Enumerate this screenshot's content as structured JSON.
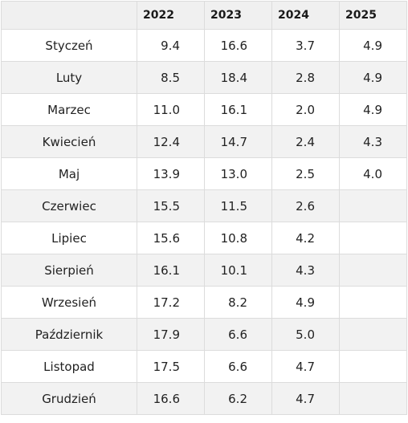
{
  "table": {
    "headers": [
      "",
      "2022",
      "2023",
      "2024",
      "2025"
    ],
    "rows": [
      {
        "month": "Styczeń",
        "values": [
          "9.4",
          "16.6",
          "3.7",
          "4.9"
        ]
      },
      {
        "month": "Luty",
        "values": [
          "8.5",
          "18.4",
          "2.8",
          "4.9"
        ]
      },
      {
        "month": "Marzec",
        "values": [
          "11.0",
          "16.1",
          "2.0",
          "4.9"
        ]
      },
      {
        "month": "Kwiecień",
        "values": [
          "12.4",
          "14.7",
          "2.4",
          "4.3"
        ]
      },
      {
        "month": "Maj",
        "values": [
          "13.9",
          "13.0",
          "2.5",
          "4.0"
        ]
      },
      {
        "month": "Czerwiec",
        "values": [
          "15.5",
          "11.5",
          "2.6",
          ""
        ]
      },
      {
        "month": "Lipiec",
        "values": [
          "15.6",
          "10.8",
          "4.2",
          ""
        ]
      },
      {
        "month": "Sierpień",
        "values": [
          "16.1",
          "10.1",
          "4.3",
          ""
        ]
      },
      {
        "month": "Wrzesień",
        "values": [
          "17.2",
          "8.2",
          "4.9",
          ""
        ]
      },
      {
        "month": "Październik",
        "values": [
          "17.9",
          "6.6",
          "5.0",
          ""
        ]
      },
      {
        "month": "Listopad",
        "values": [
          "17.5",
          "6.6",
          "4.7",
          ""
        ]
      },
      {
        "month": "Grudzień",
        "values": [
          "16.6",
          "6.2",
          "4.7",
          ""
        ]
      }
    ]
  }
}
